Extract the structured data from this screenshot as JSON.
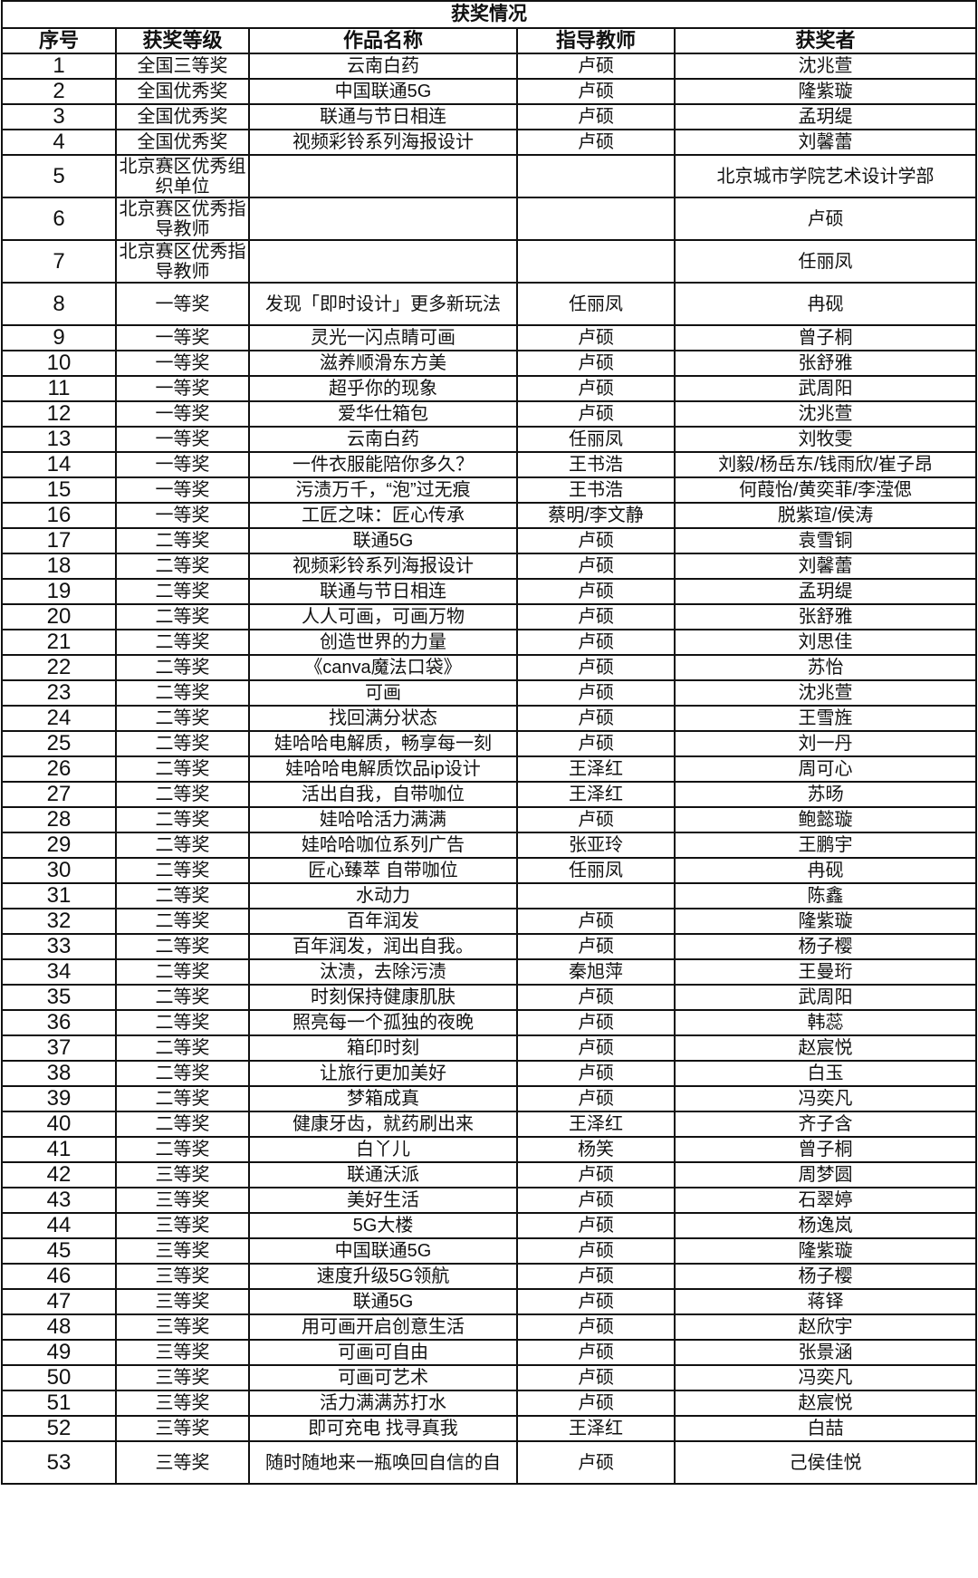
{
  "table": {
    "title": "获奖情况",
    "headers": [
      "序号",
      "获奖等级",
      "作品名称",
      "指导教师",
      "获奖者"
    ],
    "rows": [
      [
        "1",
        "全国三等奖",
        "云南白药",
        "卢硕",
        "沈兆萱"
      ],
      [
        "2",
        "全国优秀奖",
        "中国联通5G",
        "卢硕",
        "隆紫璇"
      ],
      [
        "3",
        "全国优秀奖",
        "联通与节日相连",
        "卢硕",
        "孟玥缇"
      ],
      [
        "4",
        "全国优秀奖",
        "视频彩铃系列海报设计",
        "卢硕",
        "刘馨蕾"
      ],
      [
        "5",
        "北京赛区优秀组织单位",
        "",
        "",
        "北京城市学院艺术设计学部"
      ],
      [
        "6",
        "北京赛区优秀指导教师",
        "",
        "",
        "卢硕"
      ],
      [
        "7",
        "北京赛区优秀指导教师",
        "",
        "",
        "任丽凤"
      ],
      [
        "8",
        "一等奖",
        "发现「即时设计」更多新玩法",
        "任丽凤",
        "冉砚"
      ],
      [
        "9",
        "一等奖",
        "灵光一闪点睛可画",
        "卢硕",
        "曾子桐"
      ],
      [
        "10",
        "一等奖",
        "滋养顺滑东方美",
        "卢硕",
        "张舒雅"
      ],
      [
        "11",
        "一等奖",
        "超乎你的现象",
        "卢硕",
        "武周阳"
      ],
      [
        "12",
        "一等奖",
        "爱华仕箱包",
        "卢硕",
        "沈兆萱"
      ],
      [
        "13",
        "一等奖",
        "云南白药",
        "任丽凤",
        "刘牧雯"
      ],
      [
        "14",
        "一等奖",
        "一件衣服能陪你多久？",
        "王书浩",
        "刘毅/杨岳东/钱雨欣/崔子昂"
      ],
      [
        "15",
        "一等奖",
        "污渍万千，“泡”过无痕",
        "王书浩",
        "何葭怡/黄奕菲/李滢偲"
      ],
      [
        "16",
        "一等奖",
        "工匠之味：匠心传承",
        "蔡明/李文静",
        "脱紫瑄/侯涛"
      ],
      [
        "17",
        "二等奖",
        "联通5G",
        "卢硕",
        "袁雪铜"
      ],
      [
        "18",
        "二等奖",
        "视频彩铃系列海报设计",
        "卢硕",
        "刘馨蕾"
      ],
      [
        "19",
        "二等奖",
        "联通与节日相连",
        "卢硕",
        "孟玥缇"
      ],
      [
        "20",
        "二等奖",
        "人人可画，可画万物",
        "卢硕",
        "张舒雅"
      ],
      [
        "21",
        "二等奖",
        "创造世界的力量",
        "卢硕",
        "刘思佳"
      ],
      [
        "22",
        "二等奖",
        "《canva魔法口袋》",
        "卢硕",
        "苏怡"
      ],
      [
        "23",
        "二等奖",
        "可画",
        "卢硕",
        "沈兆萱"
      ],
      [
        "24",
        "二等奖",
        "找回满分状态",
        "卢硕",
        "王雪旌"
      ],
      [
        "25",
        "二等奖",
        "娃哈哈电解质，畅享每一刻",
        "卢硕",
        "刘一丹"
      ],
      [
        "26",
        "二等奖",
        "娃哈哈电解质饮品ip设计",
        "王泽红",
        "周可心"
      ],
      [
        "27",
        "二等奖",
        "活出自我，自带咖位",
        "王泽红",
        "苏旸"
      ],
      [
        "28",
        "二等奖",
        "娃哈哈活力满满",
        "卢硕",
        "鲍懿璇"
      ],
      [
        "29",
        "二等奖",
        "娃哈哈咖位系列广告",
        "张亚玲",
        "王鹏宇"
      ],
      [
        "30",
        "二等奖",
        "匠心臻萃 自带咖位",
        "任丽凤",
        "冉砚"
      ],
      [
        "31",
        "二等奖",
        "水动力",
        "",
        "陈鑫"
      ],
      [
        "32",
        "二等奖",
        "百年润发",
        "卢硕",
        "隆紫璇"
      ],
      [
        "33",
        "二等奖",
        "百年润发，润出自我。",
        "卢硕",
        "杨子樱"
      ],
      [
        "34",
        "二等奖",
        "汰渍，去除污渍",
        "秦旭萍",
        "王曼珩"
      ],
      [
        "35",
        "二等奖",
        "时刻保持健康肌肤",
        "卢硕",
        "武周阳"
      ],
      [
        "36",
        "二等奖",
        "照亮每一个孤独的夜晚",
        "卢硕",
        "韩蕊"
      ],
      [
        "37",
        "二等奖",
        "箱印时刻",
        "卢硕",
        "赵宸悦"
      ],
      [
        "38",
        "二等奖",
        "让旅行更加美好",
        "卢硕",
        "白玉"
      ],
      [
        "39",
        "二等奖",
        "梦箱成真",
        "卢硕",
        "冯奕凡"
      ],
      [
        "40",
        "二等奖",
        "健康牙齿，就药刷出来",
        "王泽红",
        "齐子含"
      ],
      [
        "41",
        "二等奖",
        "白丫儿",
        "杨笑",
        "曾子桐"
      ],
      [
        "42",
        "三等奖",
        "联通沃派",
        "卢硕",
        "周梦圆"
      ],
      [
        "43",
        "三等奖",
        "美好生活",
        "卢硕",
        "石翠婷"
      ],
      [
        "44",
        "三等奖",
        "5G大楼",
        "卢硕",
        "杨逸岚"
      ],
      [
        "45",
        "三等奖",
        "中国联通5G",
        "卢硕",
        "隆紫璇"
      ],
      [
        "46",
        "三等奖",
        "速度升级5G领航",
        "卢硕",
        "杨子樱"
      ],
      [
        "47",
        "三等奖",
        "联通5G",
        "卢硕",
        "蒋铎"
      ],
      [
        "48",
        "三等奖",
        "用可画开启创意生活",
        "卢硕",
        "赵欣宇"
      ],
      [
        "49",
        "三等奖",
        "可画可自由",
        "卢硕",
        "张景涵"
      ],
      [
        "50",
        "三等奖",
        "可画可艺术",
        "卢硕",
        "冯奕凡"
      ],
      [
        "51",
        "三等奖",
        "活力满满苏打水",
        "卢硕",
        "赵宸悦"
      ],
      [
        "52",
        "三等奖",
        "即可充电 找寻真我",
        "王泽红",
        "白喆"
      ],
      [
        "53",
        "三等奖",
        "随时随地来一瓶唤回自信的自",
        "卢硕",
        "己侯佳悦"
      ]
    ]
  }
}
